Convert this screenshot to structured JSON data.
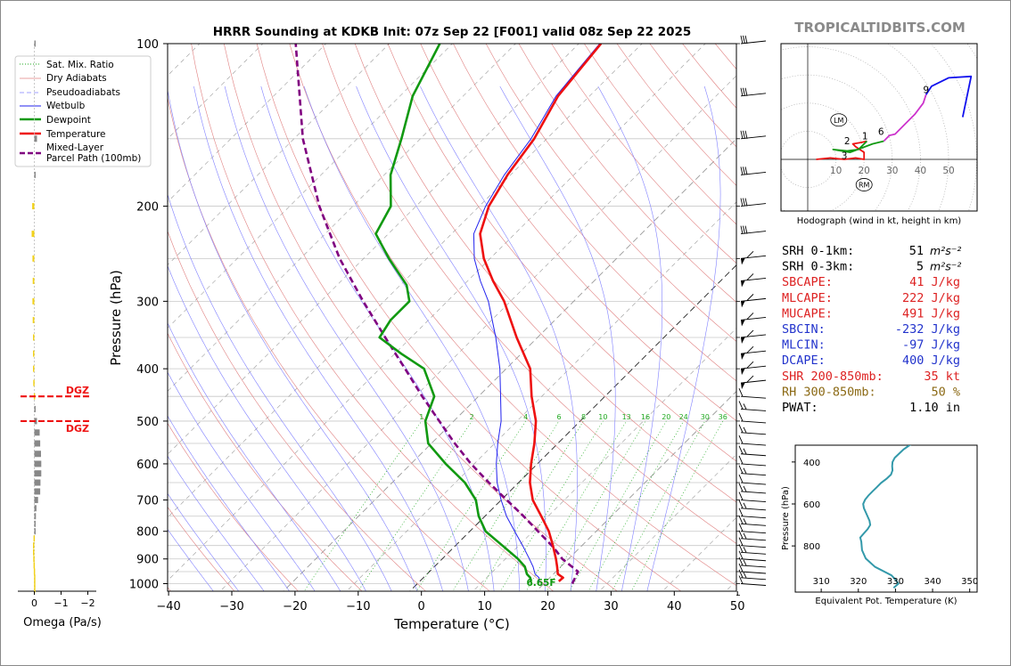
{
  "title": "HRRR Sounding at KDKB Init: 07z Sep 22 [F001] valid 08z Sep 22 2025",
  "brand": "TROPICALTIDBITS.COM",
  "colors": {
    "temperature": "#ee1111",
    "dewpoint": "#119911",
    "wetbulb": "#2222ee",
    "parcel": "#800080",
    "dry_adiabat": "#e08080",
    "pseudoadiabat": "#8080ff",
    "mixing_ratio": "#22aa22",
    "brand": "#8a8a8a",
    "cape": "#dd2222",
    "cin": "#2233cc",
    "rh": "#8b6914",
    "dgz": "#ee1111",
    "theta_e": "#3399aa",
    "omega_up": "#888888",
    "omega_down": "#f2d21b"
  },
  "legend": {
    "mixing_ratio": "Sat. Mix. Ratio",
    "dry_adiabats": "Dry Adiabats",
    "pseudoadiabats": "Pseudoadiabats",
    "wetbulb": "Wetbulb",
    "dewpoint": "Dewpoint",
    "temperature": "Temperature",
    "parcel_line1": "Mixed-Layer",
    "parcel_line2": "Parcel Path (100mb)"
  },
  "skewt": {
    "xlabel": "Temperature (°C)",
    "ylabel": "Pressure (hPa)",
    "x_ticks": [
      -40,
      -30,
      -20,
      -10,
      0,
      10,
      20,
      30,
      40,
      50
    ],
    "p_ticks": [
      100,
      200,
      300,
      400,
      500,
      600,
      700,
      800,
      900,
      1000
    ],
    "xlim": [
      -40,
      50
    ],
    "plim": [
      1050,
      100
    ],
    "mixing_ratio_values": [
      1,
      2,
      4,
      6,
      8,
      10,
      13,
      16,
      20,
      24,
      30,
      36
    ],
    "surface_label": "6.65F",
    "dgz_label": "DGZ"
  },
  "chart_data": {
    "type": "line",
    "title": "HRRR Sounding at KDKB Init: 07z Sep 22 [F001] valid 08z Sep 22 2025",
    "xlabel": "Temperature (°C)",
    "ylabel": "Pressure (hPa)",
    "pressure_ylim": [
      1050,
      100
    ],
    "temperature_xlim": [
      -40,
      50
    ],
    "series": [
      {
        "name": "Temperature",
        "pressure": [
          990,
          975,
          960,
          930,
          900,
          850,
          800,
          750,
          700,
          650,
          600,
          550,
          500,
          450,
          400,
          350,
          300,
          275,
          250,
          225,
          200,
          175,
          150,
          125,
          100
        ],
        "values": [
          22.0,
          22.1,
          20.7,
          19.4,
          18.0,
          15.4,
          12.5,
          8.9,
          5.0,
          1.8,
          -1.0,
          -3.7,
          -7.0,
          -11.6,
          -16.2,
          -23.3,
          -31.0,
          -36.0,
          -41.0,
          -45.5,
          -48.5,
          -50.5,
          -52.0,
          -55.0,
          -56.5
        ]
      },
      {
        "name": "Dewpoint",
        "pressure": [
          990,
          975,
          960,
          930,
          900,
          850,
          800,
          750,
          700,
          650,
          600,
          550,
          500,
          450,
          400,
          375,
          350,
          325,
          300,
          280,
          250,
          225,
          200,
          175,
          150,
          125,
          100
        ],
        "values": [
          17.6,
          16.9,
          15.8,
          14.3,
          12.0,
          7.4,
          2.5,
          -1.0,
          -4.0,
          -8.5,
          -14.5,
          -20.5,
          -24.5,
          -27.0,
          -33.0,
          -39.0,
          -45.0,
          -46.0,
          -46.0,
          -49.0,
          -56.0,
          -62.0,
          -64.0,
          -69.0,
          -73.0,
          -78.0,
          -82.0
        ]
      },
      {
        "name": "Wetbulb",
        "pressure": [
          990,
          975,
          960,
          930,
          900,
          850,
          800,
          750,
          700,
          650,
          600,
          550,
          500,
          450,
          400,
          350,
          300,
          275,
          250,
          225,
          200,
          175,
          150,
          125,
          100
        ],
        "values": [
          18.9,
          18.3,
          17.1,
          15.6,
          13.8,
          10.6,
          7.1,
          3.4,
          0.0,
          -3.4,
          -6.5,
          -9.5,
          -12.5,
          -16.5,
          -21.0,
          -26.6,
          -33.5,
          -38.0,
          -42.5,
          -46.5,
          -49.0,
          -51.0,
          -52.5,
          -55.3,
          -56.7
        ]
      },
      {
        "name": "Mixed-Layer Parcel Path (100mb)",
        "pressure": [
          1000,
          950,
          900,
          870,
          850,
          800,
          750,
          700,
          650,
          600,
          550,
          500,
          450,
          400,
          350,
          300,
          250,
          200,
          150,
          100
        ],
        "values": [
          24.5,
          23.5,
          19.0,
          16.8,
          15.2,
          10.8,
          6.1,
          0.9,
          -4.7,
          -10.5,
          -16.3,
          -22.3,
          -28.9,
          -36.0,
          -44.1,
          -53.3,
          -63.8,
          -75.3,
          -88.6,
          -104.8
        ]
      }
    ]
  },
  "hodograph": {
    "caption": "Hodograph (wind in kt, height in km)",
    "ring_labels": [
      "10",
      "20",
      "30",
      "40",
      "50"
    ],
    "height_labels": [
      "1",
      "2",
      "3",
      "6",
      "9"
    ],
    "lm_label": "LM",
    "rm_label": "RM",
    "chart_data": {
      "type": "line",
      "xlim": [
        -10,
        60
      ],
      "ylim": [
        -20,
        45
      ],
      "segments": [
        {
          "height_km": "0-1",
          "color": "#ee1111",
          "u": [
            3,
            8,
            13,
            17,
            20,
            20,
            17,
            16,
            19,
            21
          ],
          "v": [
            0,
            0.5,
            0,
            0.5,
            0,
            2.5,
            4.5,
            5.5,
            6,
            6.5
          ]
        },
        {
          "height_km": "1-3",
          "color": "#119911",
          "u": [
            21,
            18,
            14,
            9,
            15,
            19
          ],
          "v": [
            6.5,
            3.5,
            3,
            3.5,
            2.5,
            4
          ]
        },
        {
          "height_km": "3-6",
          "color": "#119911",
          "u": [
            19,
            23,
            27
          ],
          "v": [
            4,
            5.5,
            6.5
          ]
        },
        {
          "height_km": "6-9",
          "color": "#cc33cc",
          "u": [
            27,
            29,
            31,
            34,
            38,
            41,
            42
          ],
          "v": [
            6.5,
            8.5,
            9,
            12,
            16,
            20,
            23
          ]
        },
        {
          "height_km": "9+",
          "color": "#1111ee",
          "u": [
            42,
            44,
            50,
            58,
            55
          ],
          "v": [
            23,
            26,
            29,
            29.5,
            15
          ]
        }
      ],
      "lm": [
        11,
        14
      ],
      "rm": [
        20,
        -9
      ]
    }
  },
  "indices": [
    {
      "label": "SRH 0-1km:",
      "value": "51",
      "unit": "m²s⁻²",
      "color": "#000000"
    },
    {
      "label": "SRH 0-3km:",
      "value": "5",
      "unit": "m²s⁻²",
      "color": "#000000"
    },
    {
      "label": "SBCAPE:",
      "value": "41 J/kg",
      "unit": "",
      "color": "#dd2222"
    },
    {
      "label": "MLCAPE:",
      "value": "222 J/kg",
      "unit": "",
      "color": "#dd2222"
    },
    {
      "label": "MUCAPE:",
      "value": "491 J/kg",
      "unit": "",
      "color": "#dd2222"
    },
    {
      "label": "SBCIN:",
      "value": "-232 J/kg",
      "unit": "",
      "color": "#2233cc"
    },
    {
      "label": "MLCIN:",
      "value": "-97 J/kg",
      "unit": "",
      "color": "#2233cc"
    },
    {
      "label": "DCAPE:",
      "value": "400 J/kg",
      "unit": "",
      "color": "#2233cc"
    },
    {
      "label": "SHR 200-850mb:",
      "value": "35 kt",
      "unit": "",
      "color": "#dd2222"
    },
    {
      "label": "RH 300-850mb:",
      "value": "50 %",
      "unit": "",
      "color": "#8b6914"
    },
    {
      "label": "PWAT:",
      "value": "1.10 in",
      "unit": "",
      "color": "#000000"
    }
  ],
  "theta_e": {
    "xlabel": "Equivalent Pot. Temperature (K)",
    "ylabel": "Pressure (hPa)",
    "x_ticks": [
      310,
      320,
      330,
      340,
      350
    ],
    "p_ticks": [
      400,
      600,
      800
    ],
    "chart_data": {
      "type": "line",
      "xlim": [
        310,
        350
      ],
      "ylim": [
        1000,
        300
      ],
      "pressure": [
        1000,
        980,
        960,
        940,
        900,
        860,
        820,
        780,
        760,
        740,
        720,
        700,
        680,
        660,
        640,
        620,
        600,
        580,
        560,
        540,
        520,
        500,
        480,
        460,
        440,
        420,
        400,
        380,
        360,
        340,
        320,
        300
      ],
      "values": [
        329.5,
        330.8,
        330.0,
        328.9,
        324.5,
        322.0,
        321.0,
        320.8,
        320.5,
        321.5,
        322.5,
        323.2,
        323.0,
        322.5,
        322.0,
        321.5,
        321.3,
        321.8,
        322.7,
        323.8,
        325.0,
        326.1,
        327.6,
        328.8,
        329.2,
        329.1,
        329.2,
        329.8,
        331.0,
        332.2,
        333.8,
        335.5
      ]
    }
  },
  "omega": {
    "xlabel": "Omega (Pa/s)",
    "x_ticks": [
      "0",
      "−1",
      "−2"
    ],
    "chart_data": {
      "type": "bar",
      "xlim": [
        0.5,
        -2.3
      ],
      "pressure": [
        100,
        150,
        175,
        200,
        225,
        250,
        275,
        300,
        325,
        350,
        375,
        400,
        425,
        450,
        475,
        500,
        525,
        550,
        575,
        600,
        625,
        650,
        675,
        700,
        725,
        750,
        775,
        800,
        825,
        850,
        875,
        900,
        925,
        950,
        975,
        1000,
        1025
      ],
      "values": [
        -0.02,
        -0.1,
        -0.03,
        0.08,
        0.1,
        0.07,
        0.06,
        0.07,
        0.06,
        0.05,
        0.05,
        0.05,
        0.04,
        0.02,
        -0.02,
        -0.1,
        -0.2,
        -0.22,
        -0.25,
        -0.26,
        -0.26,
        -0.23,
        -0.22,
        -0.14,
        -0.08,
        -0.06,
        -0.04,
        -0.02,
        0.03,
        0.05,
        0.05,
        0.04,
        0.03,
        0.02,
        0.01,
        0.01,
        0.01
      ]
    },
    "dgz_pressures": [
      450,
      500
    ]
  }
}
